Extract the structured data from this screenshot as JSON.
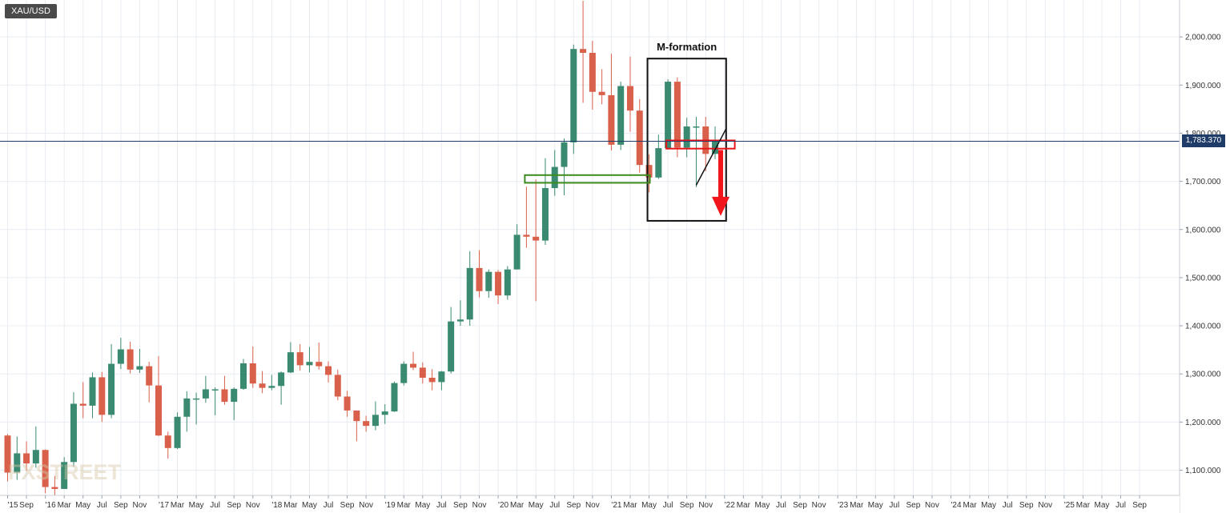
{
  "symbol": "XAU/USD",
  "current_price_label": "1,783.370",
  "annotation_label": "M-formation",
  "watermark": "FXSTREET",
  "colors": {
    "bull": "#3a8a72",
    "bear": "#d9604a",
    "grid": "#e8ecf2",
    "price_line": "#1f3b68",
    "support": "#3d8b1f",
    "resistance": "#e8161b",
    "arrow": "#f0161b",
    "box": "#111111"
  },
  "chart_data": {
    "type": "candlestick",
    "timeframe": "monthly",
    "ylim": [
      1050,
      2080
    ],
    "y_ticks": [
      "1,100.000",
      "1,200.000",
      "1,300.000",
      "1,400.000",
      "1,500.000",
      "1,600.000",
      "1,700.000",
      "1,800.000",
      "1,900.000",
      "2,000.000"
    ],
    "x_ticks": [
      "'15",
      "Sep",
      "'16",
      "Mar",
      "May",
      "Jul",
      "Sep",
      "Nov",
      "'17",
      "Mar",
      "May",
      "Jul",
      "Sep",
      "Nov",
      "'18",
      "Mar",
      "May",
      "Jul",
      "Sep",
      "Nov",
      "'19",
      "Mar",
      "May",
      "Jul",
      "Sep",
      "Nov",
      "'20",
      "Mar",
      "May",
      "Jul",
      "Sep",
      "Nov",
      "'21",
      "Mar",
      "May",
      "Jul",
      "Sep",
      "Nov",
      "'22",
      "Mar",
      "May",
      "Jul",
      "Sep",
      "Nov",
      "'23",
      "Mar",
      "May",
      "Jul",
      "Sep",
      "Nov",
      "'24",
      "Mar",
      "May",
      "Jul",
      "Sep",
      "Nov",
      "'25",
      "Mar",
      "May",
      "Jul",
      "Sep"
    ],
    "current_price": 1783.37,
    "candles": [
      {
        "d": "2015-07",
        "o": 1172,
        "h": 1175,
        "l": 1077,
        "c": 1095
      },
      {
        "d": "2015-08",
        "o": 1095,
        "h": 1170,
        "l": 1080,
        "c": 1135
      },
      {
        "d": "2015-09",
        "o": 1135,
        "h": 1160,
        "l": 1098,
        "c": 1114
      },
      {
        "d": "2015-10",
        "o": 1114,
        "h": 1191,
        "l": 1105,
        "c": 1142
      },
      {
        "d": "2015-11",
        "o": 1142,
        "h": 1143,
        "l": 1052,
        "c": 1065
      },
      {
        "d": "2015-12",
        "o": 1065,
        "h": 1088,
        "l": 1047,
        "c": 1061
      },
      {
        "d": "2016-01",
        "o": 1061,
        "h": 1127,
        "l": 1061,
        "c": 1117
      },
      {
        "d": "2016-02",
        "o": 1117,
        "h": 1262,
        "l": 1107,
        "c": 1238
      },
      {
        "d": "2016-03",
        "o": 1238,
        "h": 1283,
        "l": 1208,
        "c": 1234
      },
      {
        "d": "2016-04",
        "o": 1234,
        "h": 1303,
        "l": 1208,
        "c": 1293
      },
      {
        "d": "2016-05",
        "o": 1293,
        "h": 1304,
        "l": 1200,
        "c": 1215
      },
      {
        "d": "2016-06",
        "o": 1215,
        "h": 1362,
        "l": 1208,
        "c": 1321
      },
      {
        "d": "2016-07",
        "o": 1321,
        "h": 1375,
        "l": 1310,
        "c": 1351
      },
      {
        "d": "2016-08",
        "o": 1351,
        "h": 1367,
        "l": 1301,
        "c": 1309
      },
      {
        "d": "2016-09",
        "o": 1309,
        "h": 1352,
        "l": 1302,
        "c": 1316
      },
      {
        "d": "2016-10",
        "o": 1316,
        "h": 1325,
        "l": 1241,
        "c": 1276
      },
      {
        "d": "2016-11",
        "o": 1276,
        "h": 1337,
        "l": 1171,
        "c": 1172
      },
      {
        "d": "2016-12",
        "o": 1172,
        "h": 1180,
        "l": 1124,
        "c": 1146
      },
      {
        "d": "2017-01",
        "o": 1146,
        "h": 1220,
        "l": 1144,
        "c": 1211
      },
      {
        "d": "2017-02",
        "o": 1211,
        "h": 1264,
        "l": 1180,
        "c": 1249
      },
      {
        "d": "2017-03",
        "o": 1249,
        "h": 1261,
        "l": 1195,
        "c": 1249
      },
      {
        "d": "2017-04",
        "o": 1249,
        "h": 1296,
        "l": 1240,
        "c": 1268
      },
      {
        "d": "2017-05",
        "o": 1268,
        "h": 1272,
        "l": 1214,
        "c": 1268
      },
      {
        "d": "2017-06",
        "o": 1268,
        "h": 1296,
        "l": 1236,
        "c": 1242
      },
      {
        "d": "2017-07",
        "o": 1242,
        "h": 1272,
        "l": 1204,
        "c": 1269
      },
      {
        "d": "2017-08",
        "o": 1269,
        "h": 1331,
        "l": 1267,
        "c": 1322
      },
      {
        "d": "2017-09",
        "o": 1322,
        "h": 1357,
        "l": 1271,
        "c": 1280
      },
      {
        "d": "2017-10",
        "o": 1280,
        "h": 1306,
        "l": 1260,
        "c": 1271
      },
      {
        "d": "2017-11",
        "o": 1271,
        "h": 1298,
        "l": 1266,
        "c": 1275
      },
      {
        "d": "2017-12",
        "o": 1275,
        "h": 1305,
        "l": 1236,
        "c": 1303
      },
      {
        "d": "2018-01",
        "o": 1303,
        "h": 1366,
        "l": 1302,
        "c": 1345
      },
      {
        "d": "2018-02",
        "o": 1345,
        "h": 1362,
        "l": 1307,
        "c": 1318
      },
      {
        "d": "2018-03",
        "o": 1318,
        "h": 1356,
        "l": 1303,
        "c": 1325
      },
      {
        "d": "2018-04",
        "o": 1325,
        "h": 1365,
        "l": 1309,
        "c": 1316
      },
      {
        "d": "2018-05",
        "o": 1316,
        "h": 1326,
        "l": 1282,
        "c": 1298
      },
      {
        "d": "2018-06",
        "o": 1298,
        "h": 1309,
        "l": 1245,
        "c": 1253
      },
      {
        "d": "2018-07",
        "o": 1253,
        "h": 1265,
        "l": 1211,
        "c": 1224
      },
      {
        "d": "2018-08",
        "o": 1224,
        "h": 1215,
        "l": 1160,
        "c": 1202
      },
      {
        "d": "2018-09",
        "o": 1202,
        "h": 1213,
        "l": 1180,
        "c": 1192
      },
      {
        "d": "2018-10",
        "o": 1192,
        "h": 1243,
        "l": 1183,
        "c": 1215
      },
      {
        "d": "2018-11",
        "o": 1215,
        "h": 1237,
        "l": 1196,
        "c": 1222
      },
      {
        "d": "2018-12",
        "o": 1222,
        "h": 1284,
        "l": 1221,
        "c": 1281
      },
      {
        "d": "2019-01",
        "o": 1281,
        "h": 1326,
        "l": 1276,
        "c": 1321
      },
      {
        "d": "2019-02",
        "o": 1321,
        "h": 1346,
        "l": 1308,
        "c": 1313
      },
      {
        "d": "2019-03",
        "o": 1313,
        "h": 1324,
        "l": 1280,
        "c": 1292
      },
      {
        "d": "2019-04",
        "o": 1292,
        "h": 1310,
        "l": 1266,
        "c": 1283
      },
      {
        "d": "2019-05",
        "o": 1283,
        "h": 1306,
        "l": 1266,
        "c": 1305
      },
      {
        "d": "2019-06",
        "o": 1305,
        "h": 1439,
        "l": 1301,
        "c": 1409
      },
      {
        "d": "2019-07",
        "o": 1409,
        "h": 1453,
        "l": 1400,
        "c": 1413
      },
      {
        "d": "2019-08",
        "o": 1413,
        "h": 1555,
        "l": 1400,
        "c": 1520
      },
      {
        "d": "2019-09",
        "o": 1520,
        "h": 1557,
        "l": 1459,
        "c": 1472
      },
      {
        "d": "2019-10",
        "o": 1472,
        "h": 1517,
        "l": 1458,
        "c": 1512
      },
      {
        "d": "2019-11",
        "o": 1512,
        "h": 1516,
        "l": 1445,
        "c": 1463
      },
      {
        "d": "2019-12",
        "o": 1463,
        "h": 1524,
        "l": 1454,
        "c": 1517
      },
      {
        "d": "2020-01",
        "o": 1517,
        "h": 1611,
        "l": 1517,
        "c": 1589
      },
      {
        "d": "2020-02",
        "o": 1589,
        "h": 1689,
        "l": 1562,
        "c": 1585
      },
      {
        "d": "2020-03",
        "o": 1585,
        "h": 1704,
        "l": 1451,
        "c": 1577
      },
      {
        "d": "2020-04",
        "o": 1577,
        "h": 1748,
        "l": 1568,
        "c": 1686
      },
      {
        "d": "2020-05",
        "o": 1686,
        "h": 1765,
        "l": 1670,
        "c": 1730
      },
      {
        "d": "2020-06",
        "o": 1730,
        "h": 1789,
        "l": 1671,
        "c": 1781
      },
      {
        "d": "2020-07",
        "o": 1781,
        "h": 1984,
        "l": 1757,
        "c": 1975
      },
      {
        "d": "2020-08",
        "o": 1975,
        "h": 2075,
        "l": 1863,
        "c": 1967
      },
      {
        "d": "2020-09",
        "o": 1967,
        "h": 1992,
        "l": 1849,
        "c": 1886
      },
      {
        "d": "2020-10",
        "o": 1886,
        "h": 1933,
        "l": 1860,
        "c": 1879
      },
      {
        "d": "2020-11",
        "o": 1879,
        "h": 1965,
        "l": 1764,
        "c": 1776
      },
      {
        "d": "2020-12",
        "o": 1776,
        "h": 1907,
        "l": 1765,
        "c": 1898
      },
      {
        "d": "2021-01",
        "o": 1898,
        "h": 1959,
        "l": 1803,
        "c": 1847
      },
      {
        "d": "2021-02",
        "o": 1847,
        "h": 1871,
        "l": 1718,
        "c": 1734
      },
      {
        "d": "2021-03",
        "o": 1734,
        "h": 1756,
        "l": 1677,
        "c": 1708
      },
      {
        "d": "2021-04",
        "o": 1708,
        "h": 1797,
        "l": 1705,
        "c": 1769
      },
      {
        "d": "2021-05",
        "o": 1769,
        "h": 1912,
        "l": 1766,
        "c": 1907
      },
      {
        "d": "2021-06",
        "o": 1907,
        "h": 1916,
        "l": 1750,
        "c": 1770
      },
      {
        "d": "2021-07",
        "o": 1770,
        "h": 1832,
        "l": 1750,
        "c": 1814
      },
      {
        "d": "2021-08",
        "o": 1814,
        "h": 1834,
        "l": 1688,
        "c": 1814
      },
      {
        "d": "2021-09",
        "o": 1814,
        "h": 1834,
        "l": 1721,
        "c": 1757
      },
      {
        "d": "2021-10",
        "o": 1757,
        "h": 1814,
        "l": 1746,
        "c": 1783
      }
    ],
    "annotations": [
      {
        "type": "box",
        "label": "M-formation",
        "x": [
          "2021-03",
          "2021-11"
        ],
        "y": [
          1618,
          1955
        ],
        "color": "#111111"
      },
      {
        "type": "zone",
        "x": [
          "2020-02",
          "2021-03"
        ],
        "y": [
          1697,
          1713
        ],
        "color": "#3d8b1f"
      },
      {
        "type": "zone",
        "x": [
          "2021-05",
          "2021-12"
        ],
        "y": [
          1768,
          1785
        ],
        "color": "#e8161b"
      },
      {
        "type": "line",
        "from": {
          "d": "2021-08",
          "p": 1692
        },
        "to": {
          "d": "2021-10",
          "p": 1800
        },
        "color": "#111111"
      },
      {
        "type": "arrow",
        "at": "2021-10",
        "from_p": 1765,
        "to_p": 1628,
        "color": "#f0161b"
      }
    ]
  }
}
